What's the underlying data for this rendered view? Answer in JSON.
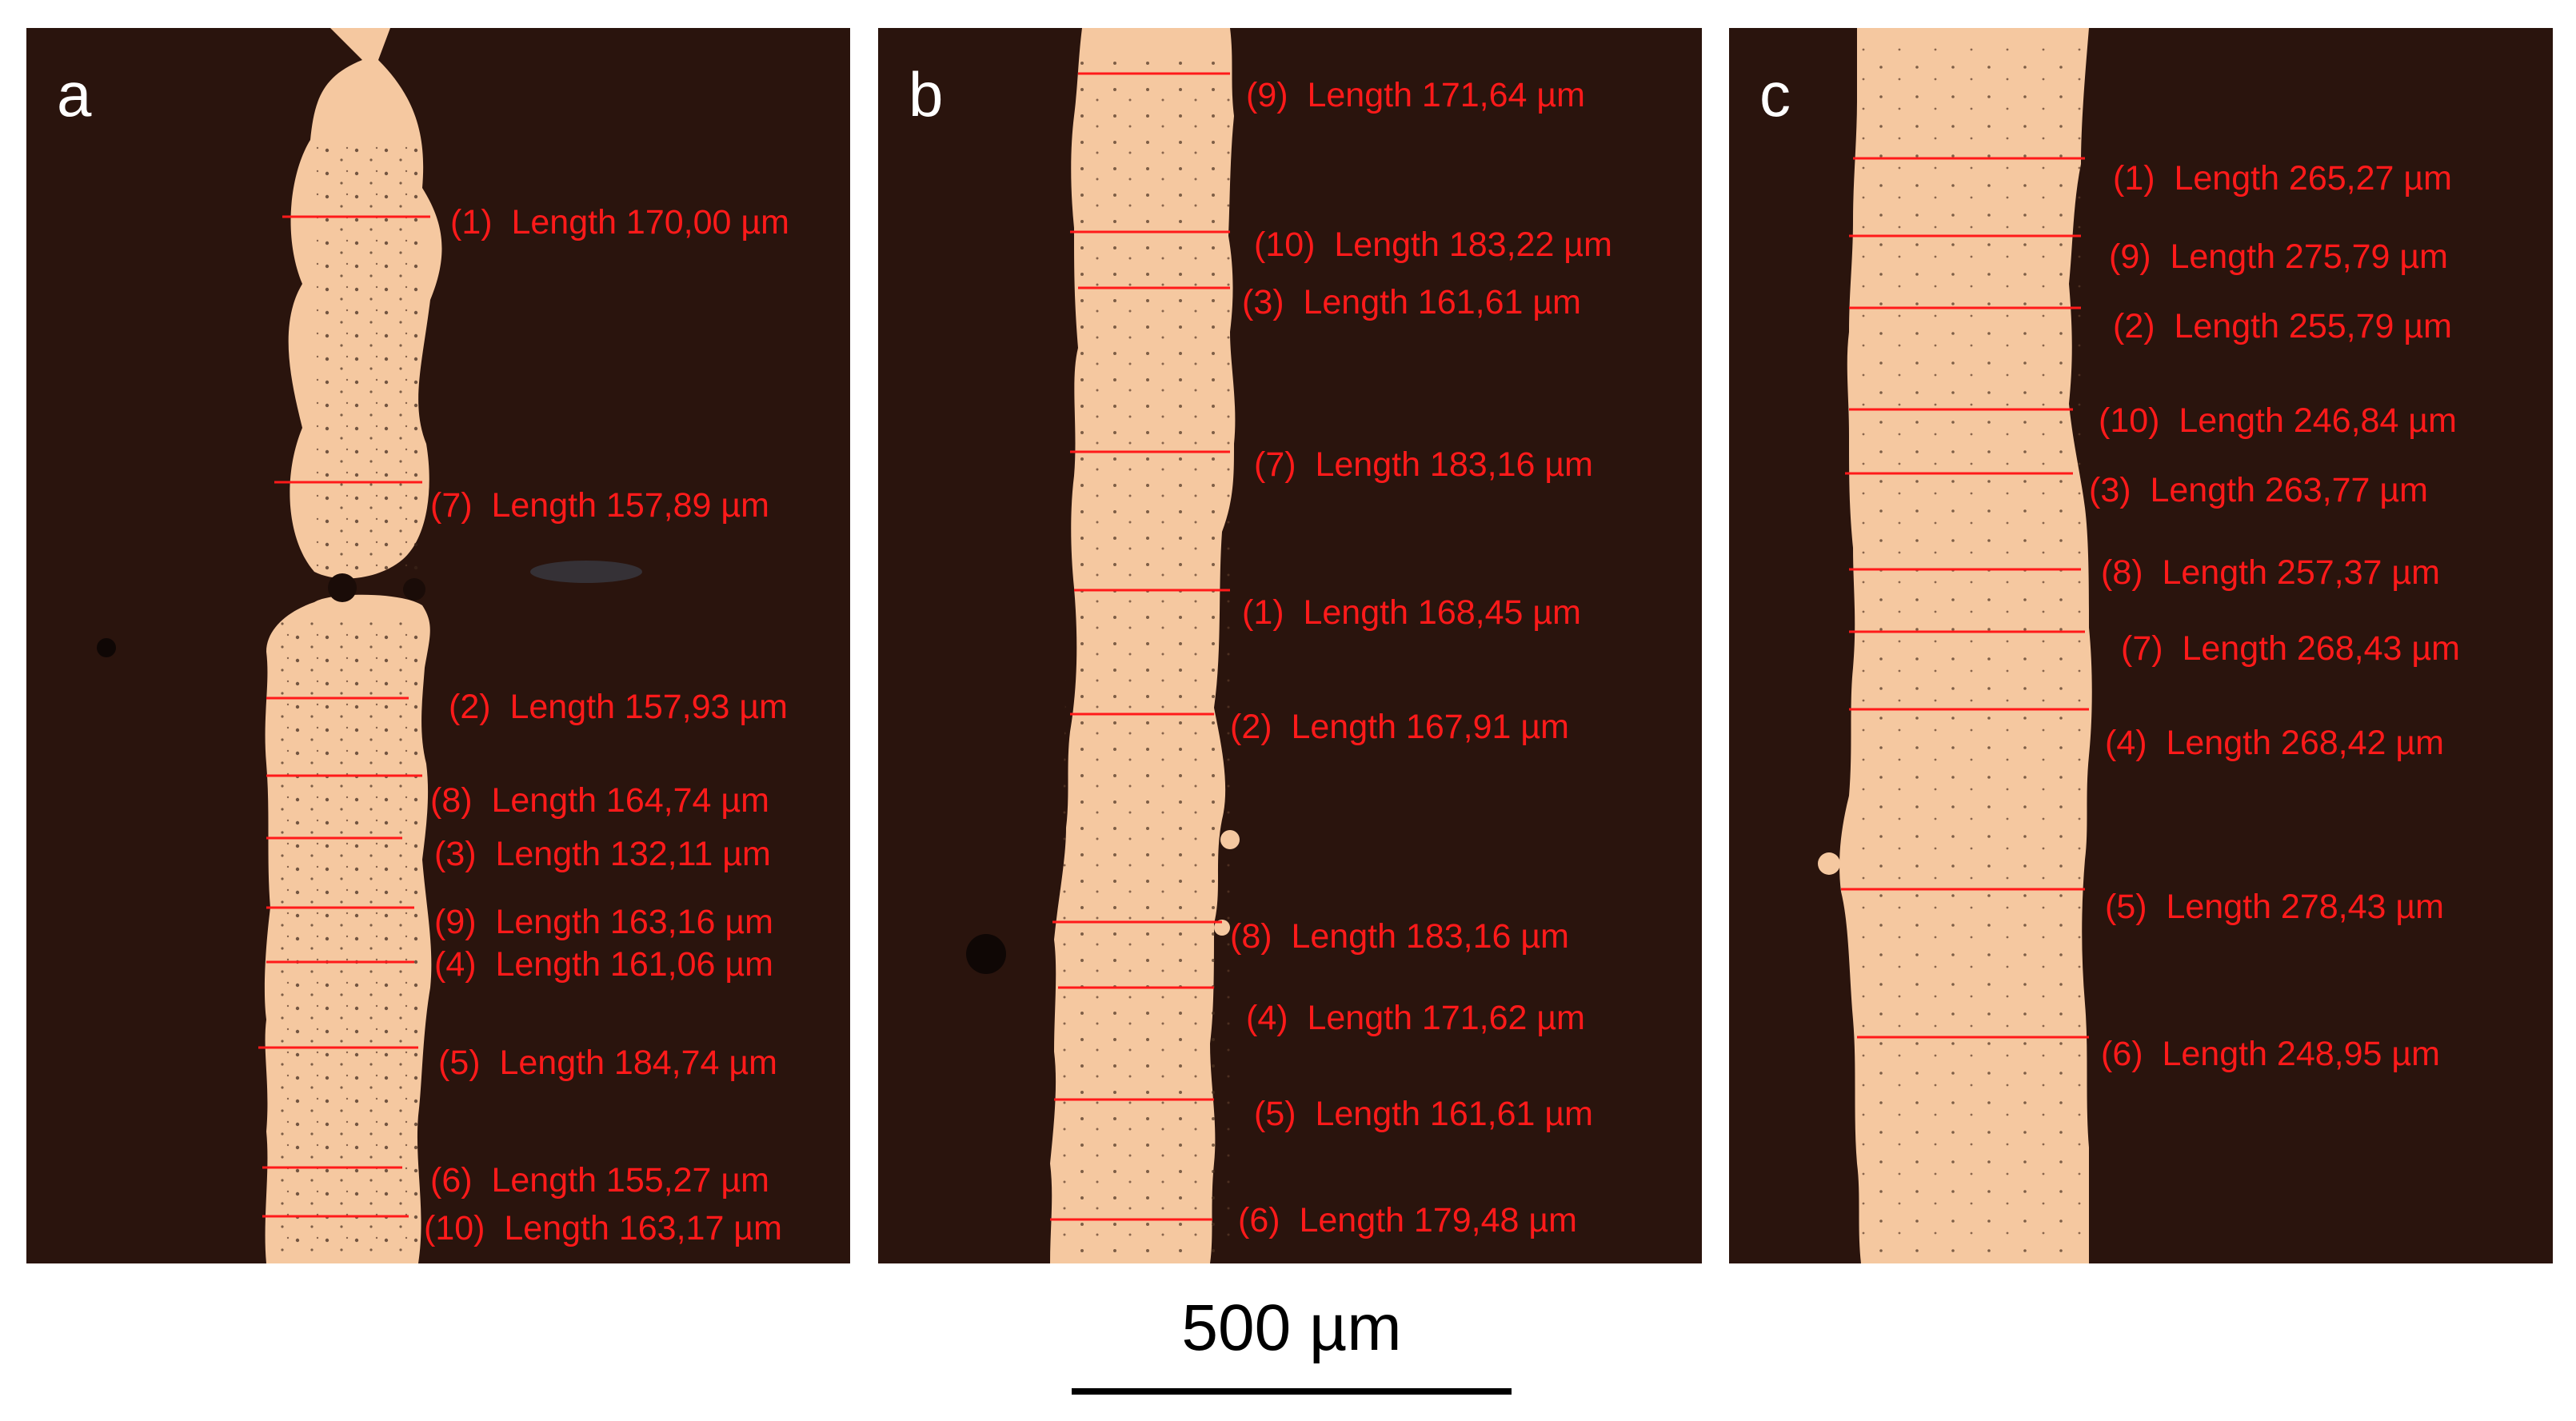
{
  "colors": {
    "background": "#2a140d",
    "copper": "#f5c8a0",
    "measure_line": "#ff1a1a",
    "panel_letter": "#ffffff",
    "scale": "#000000"
  },
  "panels": [
    {
      "letter": "a",
      "measurements": [
        {
          "index": "(1)",
          "text": "Length 170,00 µm"
        },
        {
          "index": "(7)",
          "text": "Length 157,89 µm"
        },
        {
          "index": "(2)",
          "text": "Length 157,93 µm"
        },
        {
          "index": "(8)",
          "text": "Length 164,74 µm"
        },
        {
          "index": "(3)",
          "text": "Length 132,11 µm"
        },
        {
          "index": "(9)",
          "text": "Length 163,16 µm"
        },
        {
          "index": "(4)",
          "text": "Length 161,06 µm"
        },
        {
          "index": "(5)",
          "text": "Length 184,74 µm"
        },
        {
          "index": "(6)",
          "text": "Length 155,27 µm"
        },
        {
          "index": "(10)",
          "text": "Length 163,17 µm"
        }
      ]
    },
    {
      "letter": "b",
      "measurements": [
        {
          "index": "(9)",
          "text": "Length 171,64 µm"
        },
        {
          "index": "(10)",
          "text": "Length 183,22 µm"
        },
        {
          "index": "(3)",
          "text": "Length 161,61 µm"
        },
        {
          "index": "(7)",
          "text": "Length 183,16 µm"
        },
        {
          "index": "(1)",
          "text": "Length 168,45 µm"
        },
        {
          "index": "(2)",
          "text": "Length 167,91 µm"
        },
        {
          "index": "(8)",
          "text": "Length 183,16 µm"
        },
        {
          "index": "(4)",
          "text": "Length 171,62 µm"
        },
        {
          "index": "(5)",
          "text": "Length 161,61 µm"
        },
        {
          "index": "(6)",
          "text": "Length 179,48 µm"
        }
      ]
    },
    {
      "letter": "c",
      "measurements": [
        {
          "index": "(1)",
          "text": "Length 265,27 µm"
        },
        {
          "index": "(9)",
          "text": "Length 275,79 µm"
        },
        {
          "index": "(2)",
          "text": "Length 255,79 µm"
        },
        {
          "index": "(10)",
          "text": "Length 246,84 µm"
        },
        {
          "index": "(3)",
          "text": "Length 263,77 µm"
        },
        {
          "index": "(8)",
          "text": "Length 257,37 µm"
        },
        {
          "index": "(7)",
          "text": "Length 268,43 µm"
        },
        {
          "index": "(4)",
          "text": "Length 268,42 µm"
        },
        {
          "index": "(5)",
          "text": "Length 278,43 µm"
        },
        {
          "index": "(6)",
          "text": "Length 248,95 µm"
        }
      ]
    }
  ],
  "scale_bar": {
    "label": "500 µm"
  }
}
